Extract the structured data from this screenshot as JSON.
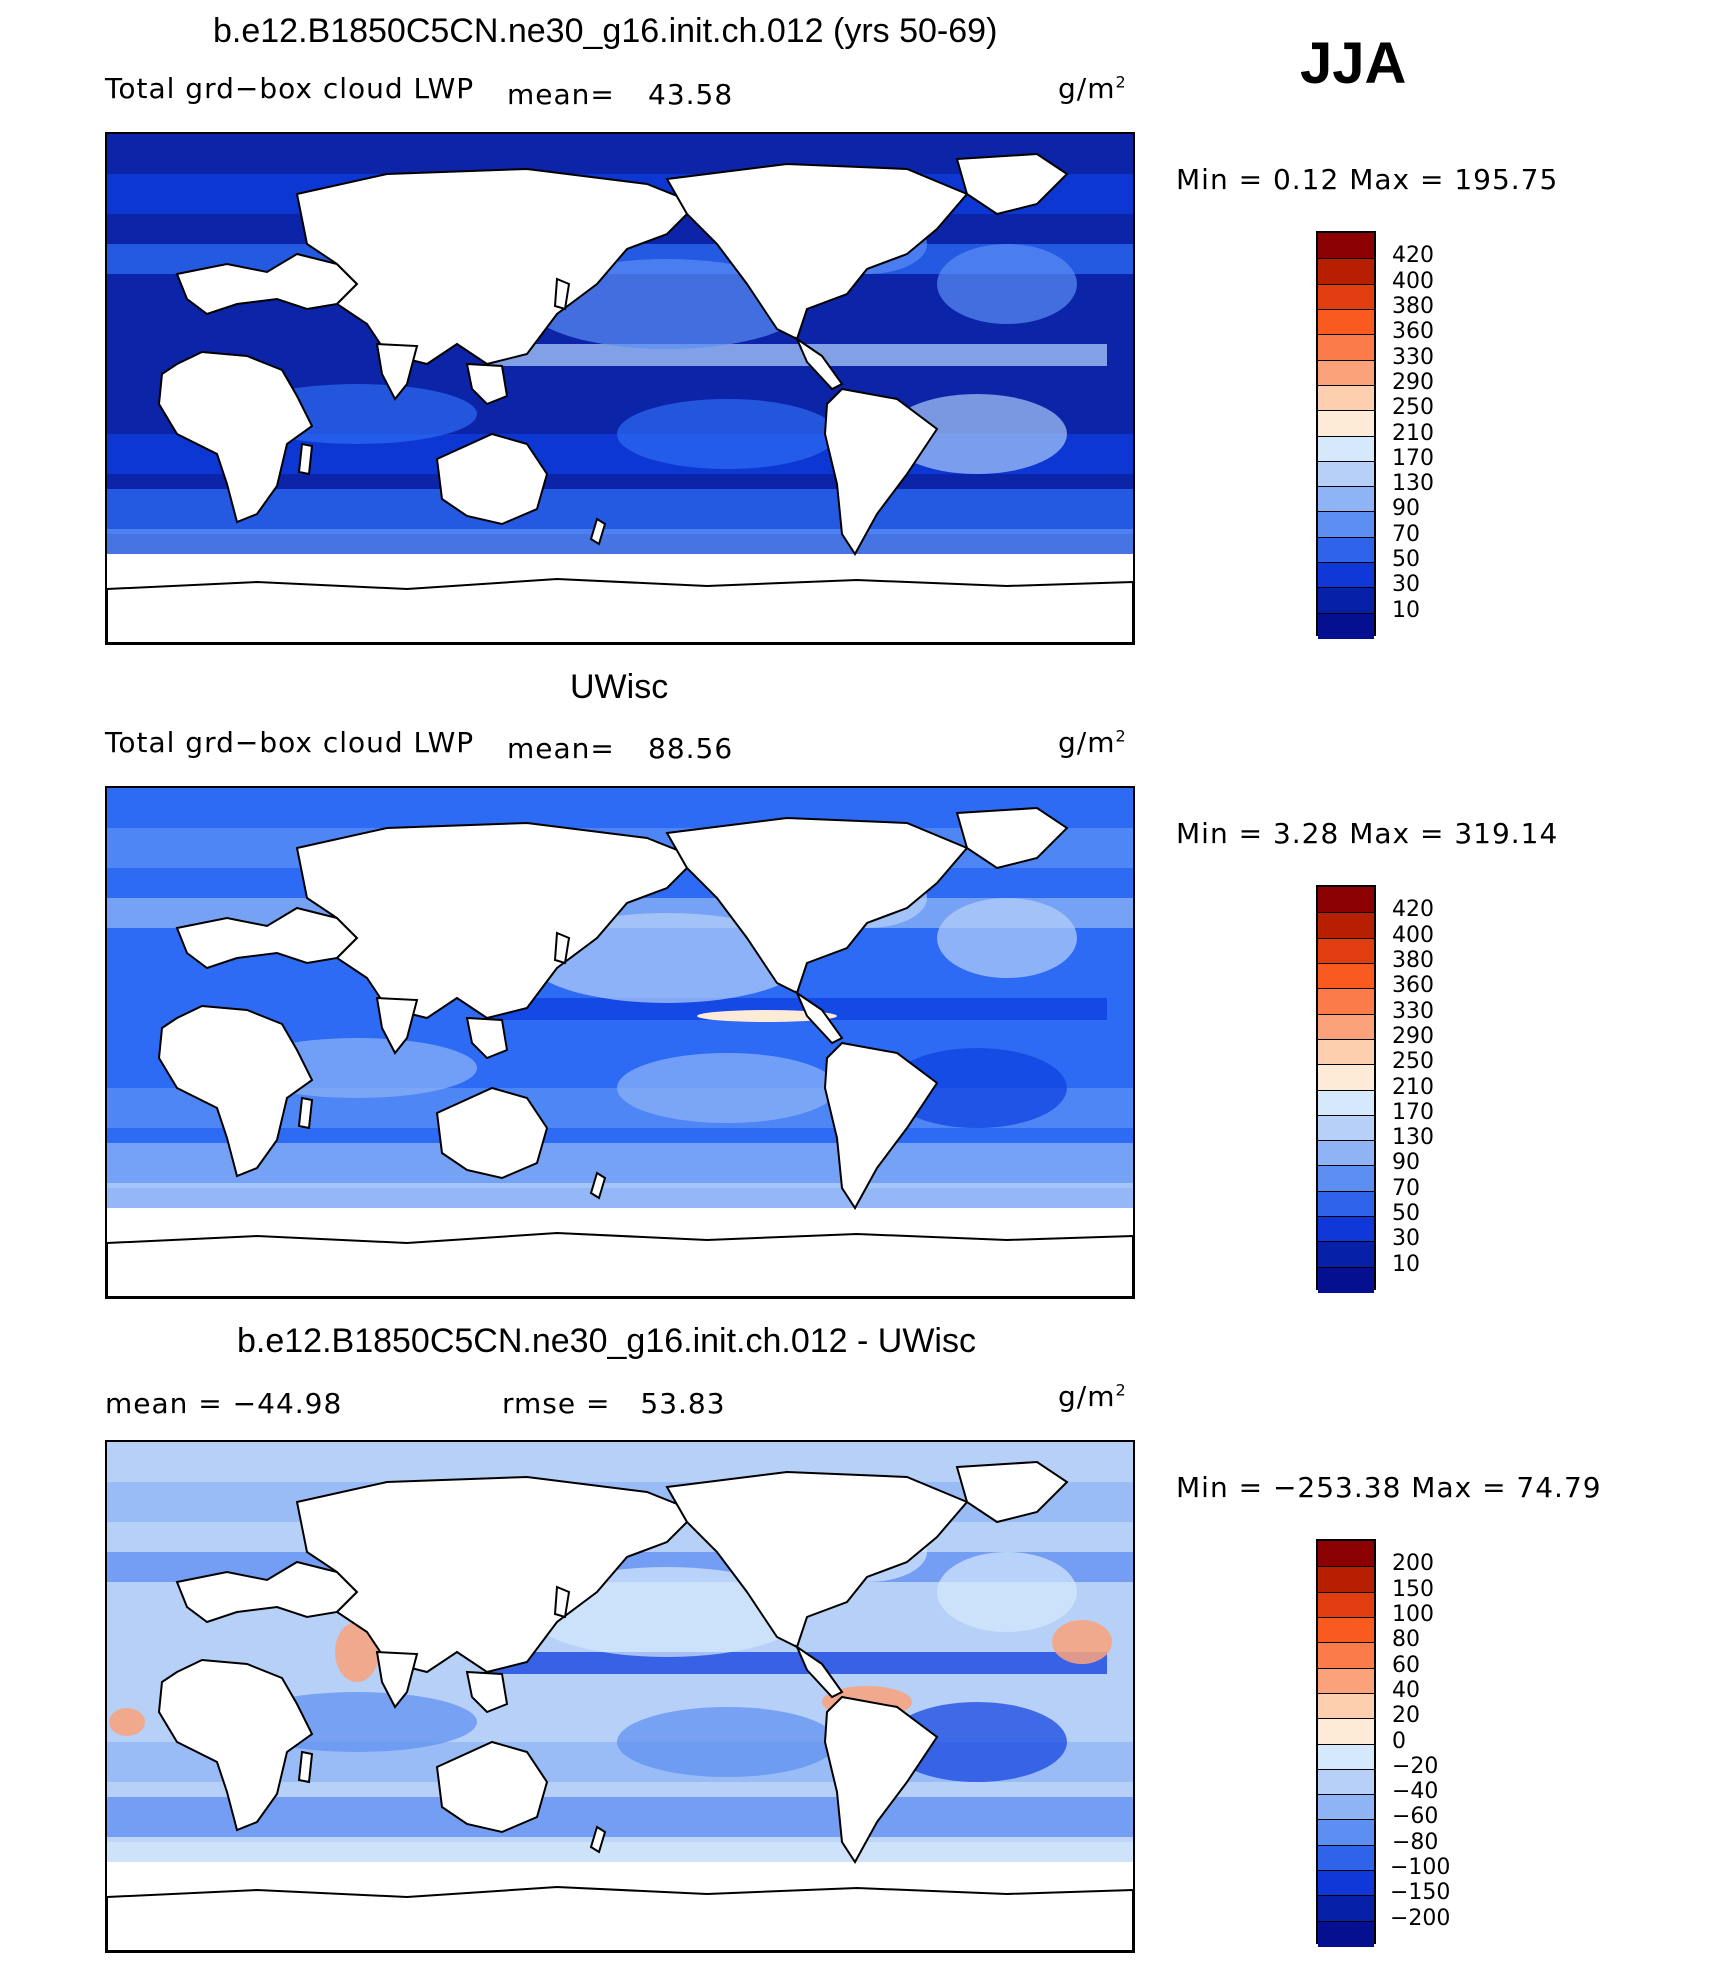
{
  "season": "JJA",
  "panels": [
    {
      "title": "b.e12.B1850C5CN.ne30_g16.init.ch.012 (yrs 50-69)",
      "left_label": "Total grd−box cloud LWP",
      "mean_label": "mean=",
      "mean_value": "43.58",
      "units": "g/m",
      "units_exp": "2",
      "minmax": "Min =    0.12 Max = 195.75",
      "colorbar": {
        "labels": [
          "420",
          "400",
          "380",
          "360",
          "330",
          "290",
          "250",
          "210",
          "170",
          "130",
          "90",
          "70",
          "50",
          "30",
          "10"
        ],
        "colors": [
          "#8b0000",
          "#b81f00",
          "#e03e10",
          "#f85a20",
          "#fb7c4a",
          "#fca27b",
          "#fdcfae",
          "#fdebd8",
          "#d6e8fb",
          "#b6d0f8",
          "#8fb4f6",
          "#5d8ef2",
          "#2f63ea",
          "#1038d8",
          "#0620a8",
          "#041090"
        ]
      },
      "map_palette": [
        "#0b24a8",
        "#0d3ee0",
        "#2e6bf4",
        "#5b8ff6",
        "#a9c9f9"
      ]
    },
    {
      "title": "UWisc",
      "left_label": "Total grd−box cloud LWP",
      "mean_label": "mean=",
      "mean_value": "88.56",
      "units": "g/m",
      "units_exp": "2",
      "minmax": "Min =    3.28 Max = 319.14",
      "colorbar": {
        "labels": [
          "420",
          "400",
          "380",
          "360",
          "330",
          "290",
          "250",
          "210",
          "170",
          "130",
          "90",
          "70",
          "50",
          "30",
          "10"
        ],
        "colors": [
          "#8b0000",
          "#b81f00",
          "#e03e10",
          "#f85a20",
          "#fb7c4a",
          "#fca27b",
          "#fdcfae",
          "#fdebd8",
          "#d6e8fb",
          "#b6d0f8",
          "#8fb4f6",
          "#5d8ef2",
          "#2f63ea",
          "#1038d8",
          "#0620a8",
          "#041090"
        ]
      },
      "map_palette": [
        "#2e6bf4",
        "#5b8ff6",
        "#8fb4f6",
        "#b6d0f8",
        "#0d3ee0"
      ]
    },
    {
      "title": "b.e12.B1850C5CN.ne30_g16.init.ch.012 - UWisc",
      "mean_label": "mean = ",
      "mean_value": "−44.98",
      "rmse_label": "rmse = ",
      "rmse_value": "53.83",
      "units": "g/m",
      "units_exp": "2",
      "minmax": "Min = −253.38 Max =   74.79",
      "colorbar": {
        "labels": [
          "200",
          "150",
          "100",
          "80",
          "60",
          "40",
          "20",
          "0",
          "−20",
          "−40",
          "−60",
          "−80",
          "−100",
          "−150",
          "−200"
        ],
        "colors": [
          "#8b0000",
          "#b81f00",
          "#e03e10",
          "#f85a20",
          "#fb7c4a",
          "#fca27b",
          "#fdcfae",
          "#fdebd8",
          "#d6e8fb",
          "#b6d0f8",
          "#8fb4f6",
          "#5d8ef2",
          "#2f63ea",
          "#1038d8",
          "#0620a8",
          "#041090"
        ]
      },
      "map_palette": [
        "#b6d0f8",
        "#8fb4f6",
        "#5d8ef2",
        "#d6e8fb",
        "#0d3ee0"
      ]
    }
  ]
}
